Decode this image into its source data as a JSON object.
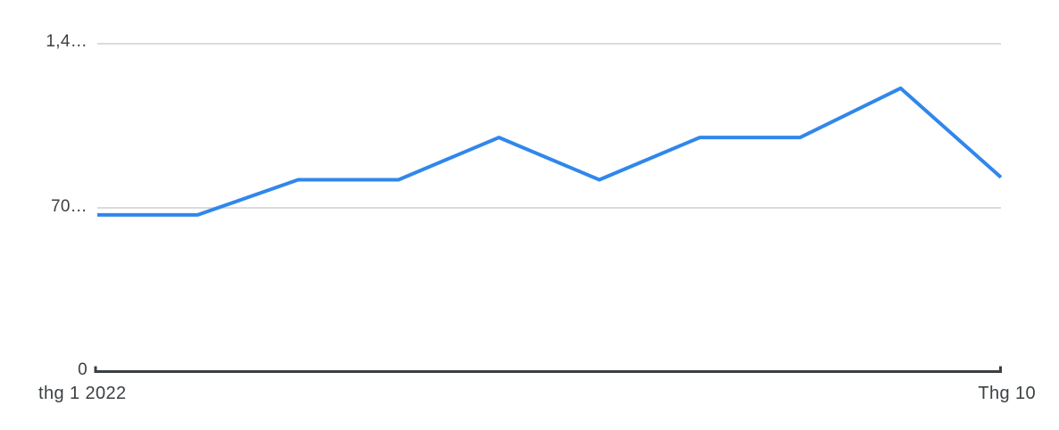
{
  "chart_data": {
    "type": "line",
    "title": "",
    "categories": [
      "2022-01",
      "2022-02",
      "2022-03",
      "2022-04",
      "2022-05",
      "2022-06",
      "2022-07",
      "2022-08",
      "2022-09",
      "2022-10"
    ],
    "values": [
      670000,
      670000,
      820000,
      820000,
      1000000,
      820000,
      1000000,
      1000000,
      1210000,
      830000
    ],
    "ylim": [
      0,
      1400000
    ],
    "yticks": [
      {
        "value": 0,
        "label": "0"
      },
      {
        "value": 700000,
        "label": "70…"
      },
      {
        "value": 1400000,
        "label": "1,4…"
      }
    ],
    "xticks": [
      {
        "position": "start",
        "label": "thg 1 2022"
      },
      {
        "position": "end",
        "label": "Thg 10"
      }
    ],
    "xlabel": "",
    "ylabel": "",
    "legend": "none",
    "grid": "horizontal-only",
    "line_color": "#3087eb",
    "gridline_color": "#dbdbdb",
    "axis_color": "#3c4043",
    "label_color": "#3c4043"
  }
}
